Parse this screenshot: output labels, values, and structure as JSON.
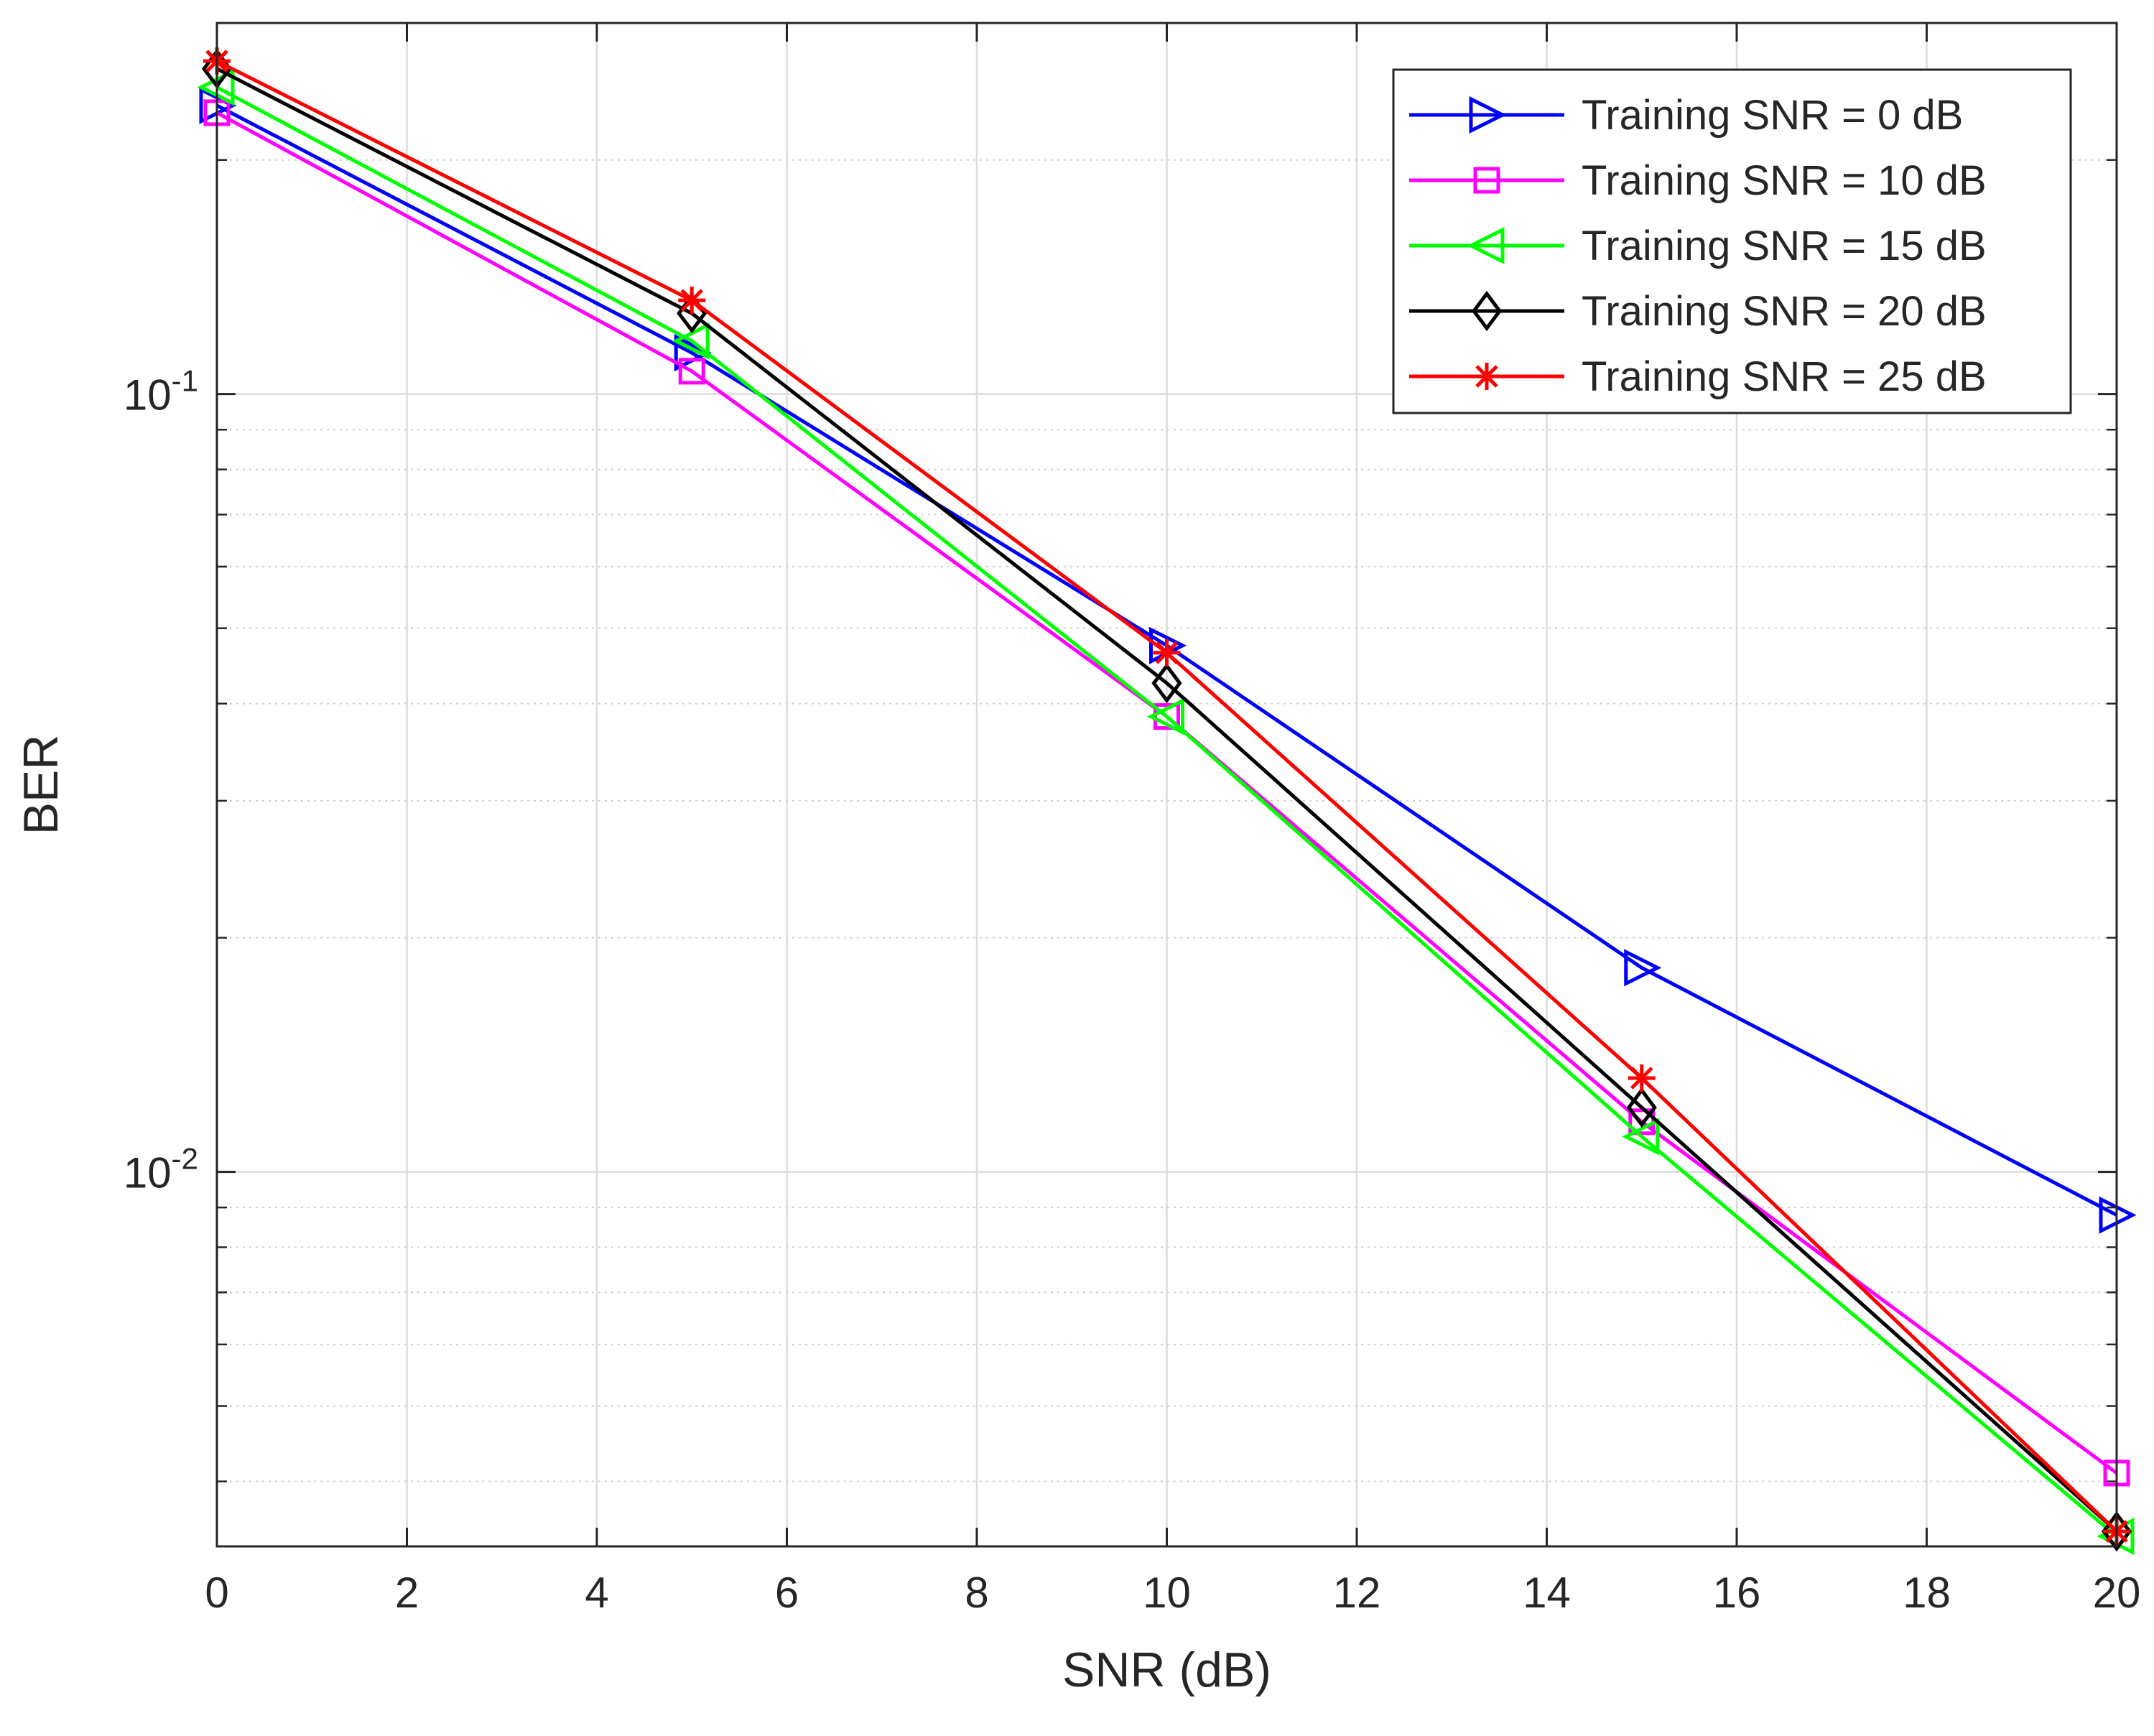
{
  "chart_data": {
    "type": "line",
    "title": "",
    "xlabel": "SNR (dB)",
    "ylabel": "BER",
    "xscale": "linear",
    "yscale": "log",
    "xlim": [
      0,
      20
    ],
    "ylim": [
      0.0033,
      0.3
    ],
    "xticks": [
      0,
      2,
      4,
      6,
      8,
      10,
      12,
      14,
      16,
      18,
      20
    ],
    "xtick_labels": [
      "0",
      "2",
      "4",
      "6",
      "8",
      "10",
      "12",
      "14",
      "16",
      "18",
      "20"
    ],
    "yticks": [
      0.01,
      0.1
    ],
    "ytick_labels": [
      {
        "base": "10",
        "exp": "-2"
      },
      {
        "base": "10",
        "exp": "-1"
      }
    ],
    "grid": true,
    "legend_position": "top-right",
    "x": [
      0,
      5,
      10,
      15,
      20
    ],
    "series": [
      {
        "name": "Training SNR = 0 dB",
        "color": "#0000ff",
        "marker": "triangle-right",
        "values": [
          0.235,
          0.113,
          0.0475,
          0.0183,
          0.0088
        ]
      },
      {
        "name": "Training SNR = 10 dB",
        "color": "#ff00ff",
        "marker": "square",
        "values": [
          0.23,
          0.107,
          0.0385,
          0.0116,
          0.0041
        ]
      },
      {
        "name": "Training SNR = 15 dB",
        "color": "#00ff00",
        "marker": "triangle-left",
        "values": [
          0.248,
          0.117,
          0.0385,
          0.0111,
          0.0034
        ]
      },
      {
        "name": "Training SNR = 20 dB",
        "color": "#000000",
        "marker": "diamond",
        "values": [
          0.262,
          0.127,
          0.0425,
          0.0121,
          0.00345
        ]
      },
      {
        "name": "Training SNR = 25 dB",
        "color": "#ff0000",
        "marker": "asterisk",
        "values": [
          0.268,
          0.132,
          0.0465,
          0.0132,
          0.00345
        ]
      }
    ]
  }
}
